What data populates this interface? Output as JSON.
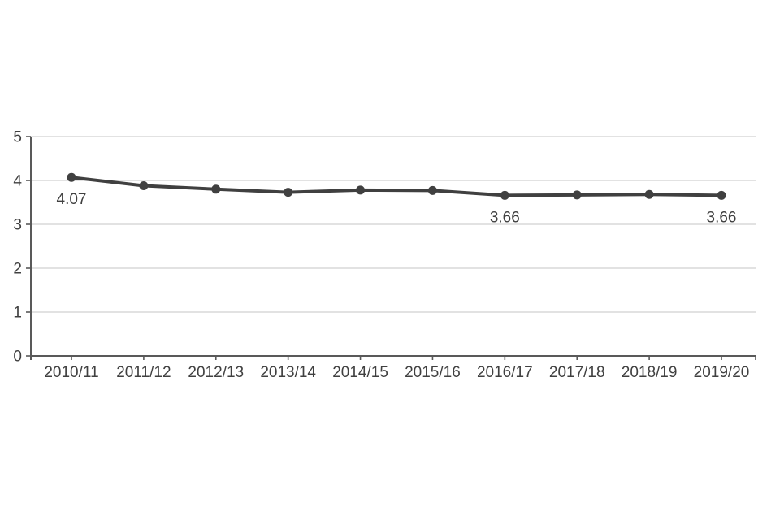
{
  "chart_data": {
    "type": "line",
    "title": "",
    "categories": [
      "2010/11",
      "2011/12",
      "2012/13",
      "2013/14",
      "2014/15",
      "2015/16",
      "2016/17",
      "2017/18",
      "2018/19",
      "2019/20"
    ],
    "series": [
      {
        "name": "",
        "values": [
          4.07,
          3.88,
          3.8,
          3.73,
          3.78,
          3.77,
          3.66,
          3.67,
          3.68,
          3.66
        ]
      }
    ],
    "data_labels": [
      {
        "index": 0,
        "category": "2010/11",
        "text": "4.07"
      },
      {
        "index": 6,
        "category": "2016/17",
        "text": "3.66"
      },
      {
        "index": 9,
        "category": "2019/20",
        "text": "3.66"
      }
    ],
    "xlabel": "",
    "ylabel": "",
    "ylim": [
      0,
      5
    ],
    "y_ticks": [
      "0",
      "1",
      "2",
      "3",
      "4",
      "5"
    ],
    "grid": "horizontal",
    "legend": "none",
    "colors": {
      "line": "#404040",
      "marker": "#404040",
      "gridline": "#d9d9d9",
      "axis": "#595959",
      "text": "#404040",
      "background": "#ffffff"
    }
  }
}
